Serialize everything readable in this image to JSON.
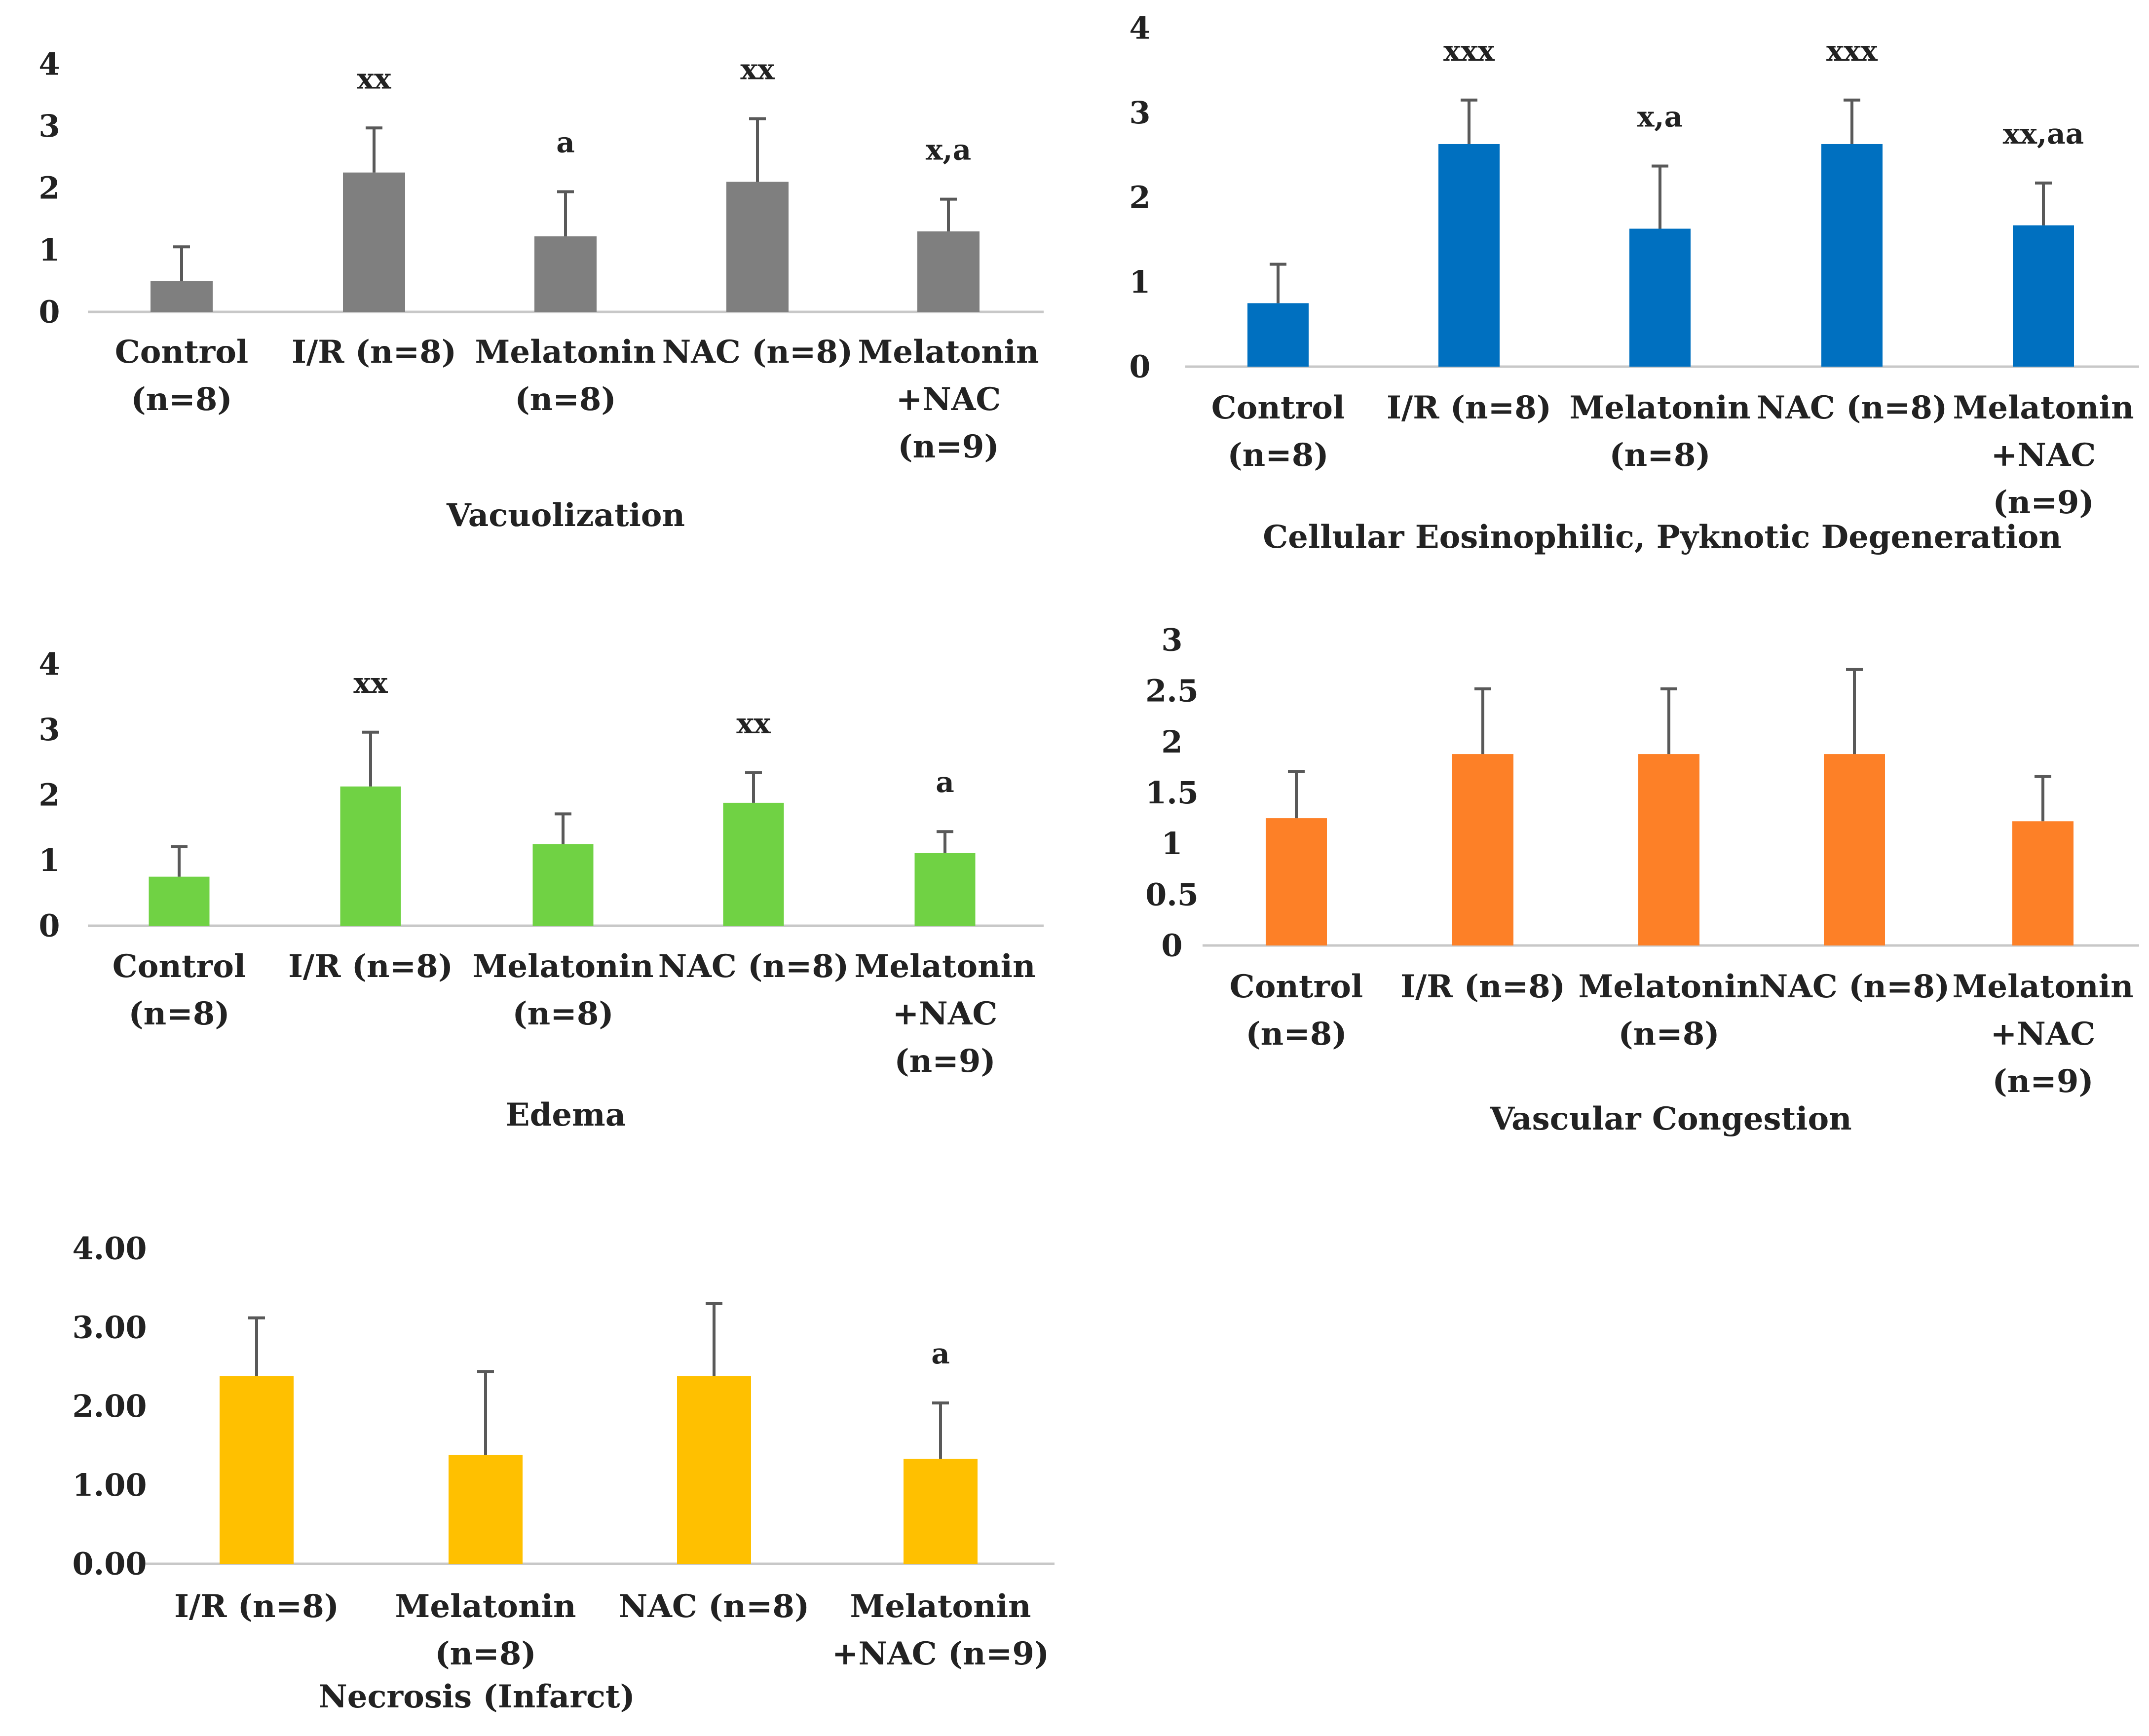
{
  "chart_data": [
    {
      "type": "bar",
      "title": "Vacuolization",
      "color": "#7f7f7f",
      "categories": [
        [
          "Control",
          "(n=8)"
        ],
        [
          "I/R (n=8)"
        ],
        [
          "Melatonin",
          "(n=8)"
        ],
        [
          "NAC  (n=8)"
        ],
        [
          "Melatonin",
          "+NAC",
          "(n=9)"
        ]
      ],
      "values": [
        0.5,
        2.25,
        1.22,
        2.1,
        1.3
      ],
      "errors": [
        0.55,
        0.72,
        0.72,
        1.02,
        0.52
      ],
      "significance": [
        "",
        "xx",
        "a",
        "xx",
        "x,a"
      ],
      "yticks": [
        "0",
        "1",
        "2",
        "3",
        "4"
      ],
      "ylim": [
        0,
        4
      ]
    },
    {
      "type": "bar",
      "title": "Cellular Eosinophilic, Pyknotic Degeneration",
      "color": "#0070c0",
      "categories": [
        [
          "Control",
          "(n=8)"
        ],
        [
          "I/R (n=8)"
        ],
        [
          "Melatonin",
          "(n=8)"
        ],
        [
          "NAC  (n=8)"
        ],
        [
          "Melatonin",
          "+NAC",
          "(n=9)"
        ]
      ],
      "values": [
        0.75,
        2.63,
        1.63,
        2.63,
        1.67
      ],
      "errors": [
        0.46,
        0.52,
        0.74,
        0.52,
        0.5
      ],
      "significance": [
        "",
        "xxx",
        "x,a",
        "xxx",
        "xx,aa"
      ],
      "yticks": [
        "0",
        "1",
        "2",
        "3",
        "4"
      ],
      "ylim": [
        0,
        4
      ]
    },
    {
      "type": "bar",
      "title": "Edema",
      "color": "#70d244",
      "categories": [
        [
          "Control",
          "(n=8)"
        ],
        [
          "I/R (n=8)"
        ],
        [
          "Melatonin",
          "(n=8)"
        ],
        [
          "NAC  (n=8)"
        ],
        [
          "Melatonin",
          "+NAC",
          "(n=9)"
        ]
      ],
      "values": [
        0.75,
        2.13,
        1.25,
        1.88,
        1.11
      ],
      "errors": [
        0.46,
        0.83,
        0.46,
        0.46,
        0.33
      ],
      "significance": [
        "",
        "xx",
        "",
        "xx",
        "a"
      ],
      "yticks": [
        "0",
        "1",
        "2",
        "3",
        "4"
      ],
      "ylim": [
        0,
        4
      ]
    },
    {
      "type": "bar",
      "title": "Vascular Congestion",
      "color": "#fd8027",
      "categories": [
        [
          "Control",
          "(n=8)"
        ],
        [
          "I/R (n=8)"
        ],
        [
          "Melatonin",
          "(n=8)"
        ],
        [
          "NAC  (n=8)"
        ],
        [
          "Melatonin",
          "+NAC",
          "(n=9)"
        ]
      ],
      "values": [
        1.25,
        1.88,
        1.88,
        1.88,
        1.22
      ],
      "errors": [
        0.46,
        0.64,
        0.64,
        0.83,
        0.44
      ],
      "significance": [
        "",
        "",
        "",
        "",
        ""
      ],
      "yticks": [
        "0",
        "0.5",
        "1",
        "1.5",
        "2",
        "2.5",
        "3"
      ],
      "ylim": [
        0,
        3
      ]
    },
    {
      "type": "bar",
      "title": "Necrosis (Infarct)",
      "color": "#ffc000",
      "categories": [
        [
          "I/R (n=8)"
        ],
        [
          "Melatonin",
          "(n=8)"
        ],
        [
          "NAC  (n=8)"
        ],
        [
          "Melatonin",
          "+NAC  (n=9)"
        ]
      ],
      "values": [
        2.38,
        1.38,
        2.38,
        1.33
      ],
      "errors": [
        0.74,
        1.06,
        0.92,
        0.71
      ],
      "significance": [
        "",
        "",
        "",
        "a"
      ],
      "yticks": [
        "0.00",
        "1.00",
        "2.00",
        "3.00",
        "4.00"
      ],
      "ylim": [
        0,
        4
      ]
    }
  ]
}
